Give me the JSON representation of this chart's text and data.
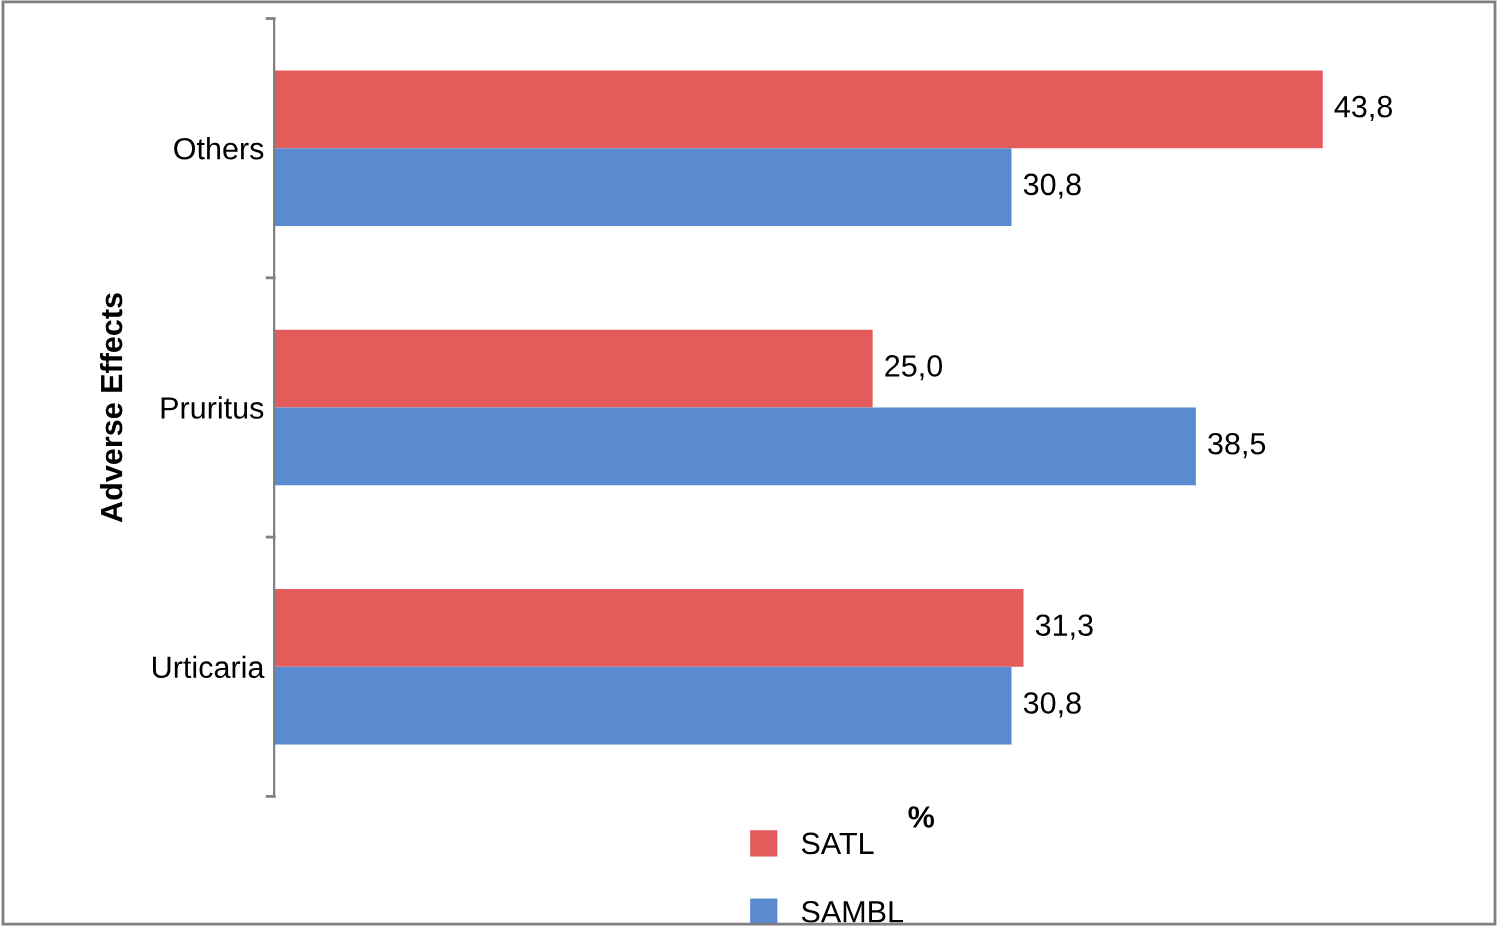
{
  "chart_data": {
    "type": "bar",
    "orientation": "horizontal",
    "ylabel": "Adverse Effects",
    "xlabel": "%",
    "categories": [
      "Others",
      "Pruritus",
      "Urticaria"
    ],
    "series": [
      {
        "name": "SATL",
        "color": "#e35b5b",
        "values": [
          43.8,
          25.0,
          31.3
        ],
        "value_labels": [
          "43,8",
          "25,0",
          "31,3"
        ]
      },
      {
        "name": "SAMBL",
        "color": "#5a8ad0",
        "values": [
          30.8,
          38.5,
          30.8
        ],
        "value_labels": [
          "30,8",
          "38,5",
          "30,8"
        ]
      }
    ],
    "tick_labels": "y",
    "grid": false,
    "legend": "bottom"
  }
}
